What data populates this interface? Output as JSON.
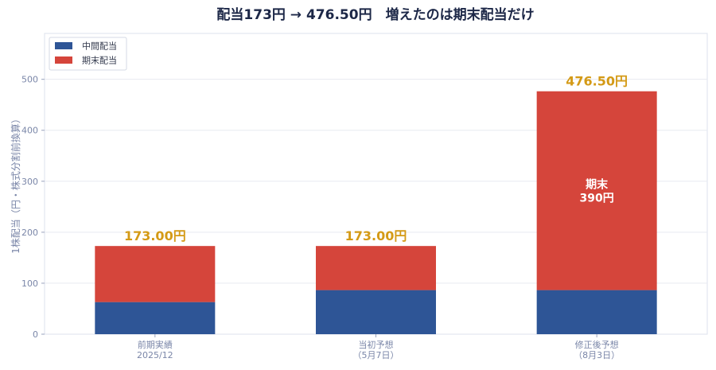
{
  "chart_data": {
    "type": "bar",
    "stacked": true,
    "title": "配当173円 → 476.50円　増えたのは期末配当だけ",
    "ylabel": "1株配当（円・株式分割前換算）",
    "ylim": [
      0,
      590
    ],
    "yticks": [
      0,
      100,
      200,
      300,
      400,
      500
    ],
    "grid": true,
    "legend_position": "top-left",
    "categories": [
      [
        "前期実績",
        "2025/12"
      ],
      [
        "当初予想",
        "（5月7日）"
      ],
      [
        "修正後予想",
        "（8月3日）"
      ]
    ],
    "series": [
      {
        "name": "中間配当",
        "color": "#2e5596",
        "values": [
          63,
          86.5,
          86.5
        ]
      },
      {
        "name": "期末配当",
        "color": "#d5453b",
        "values": [
          110,
          86.5,
          390
        ]
      }
    ],
    "totals": [
      "173.00円",
      "173.00円",
      "476.50円"
    ],
    "inbar_annotation": {
      "category_index": 2,
      "lines": [
        "期末",
        "390円"
      ]
    }
  }
}
